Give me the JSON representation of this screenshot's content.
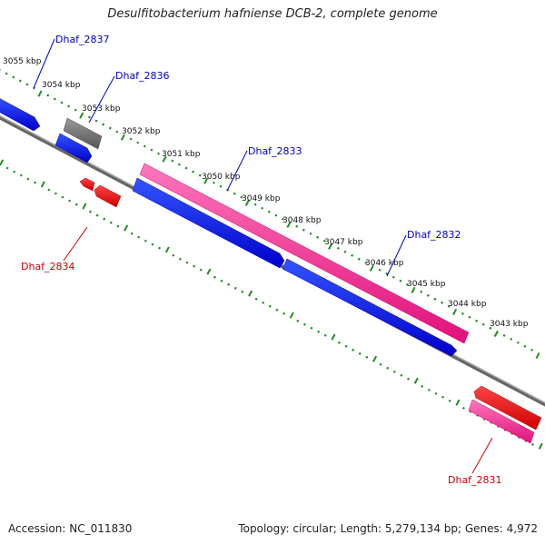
{
  "title": "Desulfitobacterium hafniense DCB-2, complete genome",
  "footer": {
    "accession": "Accession: NC_011830",
    "summary": "Topology: circular; Length: 5,279,134 bp; Genes: 4,972"
  },
  "kbp_labels": [
    "3055 kbp",
    "3054 kbp",
    "3053 kbp",
    "3052 kbp",
    "3051 kbp",
    "3050 kbp",
    "3049 kbp",
    "3048 kbp",
    "3047 kbp",
    "3046 kbp",
    "3045 kbp",
    "3044 kbp",
    "3043 kbp"
  ],
  "gene_labels": {
    "dhaf_2837": "Dhaf_2837",
    "dhaf_2836": "Dhaf_2836",
    "dhaf_2833": "Dhaf_2833",
    "dhaf_2832": "Dhaf_2832",
    "dhaf_2834": "Dhaf_2834",
    "dhaf_2831": "Dhaf_2831"
  },
  "colors": {
    "backbone": "#808080",
    "tick": "#228b22",
    "gene_forward": "#0000ff",
    "gene_reverse": "#ff0000",
    "pink_feature": "#ff3399",
    "gray_feature": "#707070",
    "label_blue": "#0000cc",
    "label_red": "#cc0000"
  }
}
